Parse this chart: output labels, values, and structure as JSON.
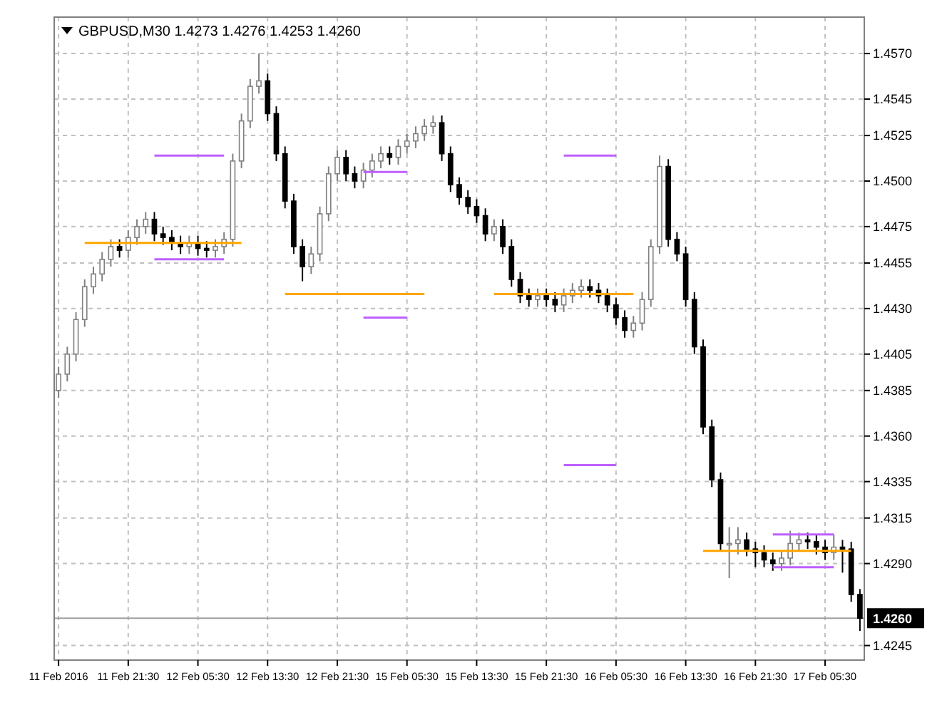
{
  "chart_data": {
    "type": "candlestick",
    "title": "GBPUSD,M30  1.4273 1.4276 1.4253 1.4260",
    "categories": [
      "11 Feb 2016",
      null,
      null,
      null,
      null,
      null,
      null,
      null,
      "11 Feb 21:30",
      null,
      null,
      null,
      null,
      null,
      null,
      null,
      "12 Feb 05:30",
      null,
      null,
      null,
      null,
      null,
      null,
      null,
      "12 Feb 13:30",
      null,
      null,
      null,
      null,
      null,
      null,
      null,
      "12 Feb 21:30",
      null,
      null,
      null,
      null,
      null,
      null,
      null,
      "15 Feb 05:30",
      null,
      null,
      null,
      null,
      null,
      null,
      null,
      "15 Feb 13:30",
      null,
      null,
      null,
      null,
      null,
      null,
      null,
      "15 Feb 21:30",
      null,
      null,
      null,
      null,
      null,
      null,
      null,
      "16 Feb 05:30",
      null,
      null,
      null,
      null,
      null,
      null,
      null,
      "16 Feb 13:30",
      null,
      null,
      null,
      null,
      null,
      null,
      null,
      "16 Feb 21:30",
      null,
      null,
      null,
      null,
      null,
      null,
      null,
      "17 Feb 05:30",
      null,
      null,
      null,
      null
    ],
    "ohlc": [
      [
        1.4385,
        1.4398,
        1.4381,
        1.4394
      ],
      [
        1.4394,
        1.4409,
        1.439,
        1.4405
      ],
      [
        1.4405,
        1.4428,
        1.4401,
        1.4424
      ],
      [
        1.4424,
        1.4446,
        1.442,
        1.4442
      ],
      [
        1.4442,
        1.4453,
        1.4438,
        1.4449
      ],
      [
        1.4449,
        1.4461,
        1.4445,
        1.4457
      ],
      [
        1.4457,
        1.4468,
        1.4453,
        1.4464
      ],
      [
        1.4464,
        1.4468,
        1.4458,
        1.4462
      ],
      [
        1.4462,
        1.4473,
        1.4458,
        1.4469
      ],
      [
        1.4469,
        1.4479,
        1.4465,
        1.4475
      ],
      [
        1.4475,
        1.4483,
        1.4471,
        1.4479
      ],
      [
        1.4479,
        1.4483,
        1.4467,
        1.4471
      ],
      [
        1.4471,
        1.4475,
        1.4465,
        1.4469
      ],
      [
        1.4469,
        1.4473,
        1.4462,
        1.4466
      ],
      [
        1.4466,
        1.447,
        1.446,
        1.4464
      ],
      [
        1.4464,
        1.447,
        1.446,
        1.4466
      ],
      [
        1.4466,
        1.447,
        1.4459,
        1.4463
      ],
      [
        1.4463,
        1.4467,
        1.4458,
        1.4462
      ],
      [
        1.4462,
        1.4468,
        1.4458,
        1.4464
      ],
      [
        1.4464,
        1.4472,
        1.446,
        1.4468
      ],
      [
        1.4468,
        1.4515,
        1.4464,
        1.4511
      ],
      [
        1.4511,
        1.4537,
        1.4507,
        1.4533
      ],
      [
        1.4533,
        1.4556,
        1.4529,
        1.4552
      ],
      [
        1.4552,
        1.457,
        1.4548,
        1.4555
      ],
      [
        1.4555,
        1.4559,
        1.4533,
        1.4537
      ],
      [
        1.4537,
        1.4541,
        1.4511,
        1.4515
      ],
      [
        1.4515,
        1.4519,
        1.4485,
        1.4489
      ],
      [
        1.4489,
        1.4493,
        1.446,
        1.4464
      ],
      [
        1.4464,
        1.4468,
        1.4445,
        1.4453
      ],
      [
        1.4453,
        1.4464,
        1.4449,
        1.446
      ],
      [
        1.446,
        1.4486,
        1.4456,
        1.4482
      ],
      [
        1.4482,
        1.4508,
        1.4478,
        1.4504
      ],
      [
        1.4504,
        1.4517,
        1.45,
        1.4513
      ],
      [
        1.4513,
        1.4517,
        1.45,
        1.4504
      ],
      [
        1.4504,
        1.4508,
        1.4496,
        1.45
      ],
      [
        1.45,
        1.451,
        1.4496,
        1.4506
      ],
      [
        1.4506,
        1.4515,
        1.4502,
        1.4511
      ],
      [
        1.4511,
        1.4519,
        1.4507,
        1.4515
      ],
      [
        1.4515,
        1.4519,
        1.4509,
        1.4513
      ],
      [
        1.4513,
        1.4523,
        1.4509,
        1.4519
      ],
      [
        1.4519,
        1.4526,
        1.4515,
        1.4522
      ],
      [
        1.4522,
        1.453,
        1.4518,
        1.4526
      ],
      [
        1.4526,
        1.4534,
        1.4522,
        1.453
      ],
      [
        1.453,
        1.4536,
        1.4526,
        1.4532
      ],
      [
        1.4532,
        1.4536,
        1.4511,
        1.4515
      ],
      [
        1.4515,
        1.4519,
        1.4494,
        1.4498
      ],
      [
        1.4498,
        1.4502,
        1.4487,
        1.4491
      ],
      [
        1.4491,
        1.4495,
        1.4482,
        1.4486
      ],
      [
        1.4486,
        1.449,
        1.4477,
        1.4481
      ],
      [
        1.4481,
        1.4485,
        1.4467,
        1.4471
      ],
      [
        1.4471,
        1.4479,
        1.4467,
        1.4475
      ],
      [
        1.4475,
        1.4479,
        1.446,
        1.4464
      ],
      [
        1.4464,
        1.4468,
        1.4442,
        1.4446
      ],
      [
        1.4446,
        1.445,
        1.4433,
        1.4437
      ],
      [
        1.4437,
        1.4441,
        1.4431,
        1.4435
      ],
      [
        1.4435,
        1.4441,
        1.4431,
        1.4437
      ],
      [
        1.4437,
        1.4441,
        1.4431,
        1.4435
      ],
      [
        1.4435,
        1.4439,
        1.4428,
        1.4432
      ],
      [
        1.4432,
        1.4441,
        1.4428,
        1.4437
      ],
      [
        1.4437,
        1.4444,
        1.4433,
        1.444
      ],
      [
        1.444,
        1.4446,
        1.4436,
        1.4442
      ],
      [
        1.4442,
        1.4446,
        1.4436,
        1.444
      ],
      [
        1.444,
        1.4444,
        1.4433,
        1.4437
      ],
      [
        1.4437,
        1.4441,
        1.4428,
        1.4432
      ],
      [
        1.4432,
        1.4436,
        1.4421,
        1.4425
      ],
      [
        1.4425,
        1.4429,
        1.4414,
        1.4418
      ],
      [
        1.4418,
        1.4426,
        1.4414,
        1.4422
      ],
      [
        1.4422,
        1.4439,
        1.4418,
        1.4435
      ],
      [
        1.4435,
        1.4468,
        1.4431,
        1.4464
      ],
      [
        1.4464,
        1.4514,
        1.446,
        1.4508
      ],
      [
        1.4508,
        1.4512,
        1.4464,
        1.4468
      ],
      [
        1.4468,
        1.4472,
        1.4456,
        1.446
      ],
      [
        1.446,
        1.4464,
        1.4431,
        1.4435
      ],
      [
        1.4435,
        1.4439,
        1.4405,
        1.4409
      ],
      [
        1.4409,
        1.4413,
        1.4361,
        1.4365
      ],
      [
        1.4365,
        1.4369,
        1.4332,
        1.4336
      ],
      [
        1.4336,
        1.434,
        1.4297,
        1.4301
      ],
      [
        1.4301,
        1.431,
        1.4282,
        1.4301
      ],
      [
        1.4301,
        1.431,
        1.4295,
        1.4303
      ],
      [
        1.4303,
        1.4307,
        1.4294,
        1.4298
      ],
      [
        1.4298,
        1.4302,
        1.4288,
        1.4296
      ],
      [
        1.4296,
        1.43,
        1.4288,
        1.4292
      ],
      [
        1.4292,
        1.4296,
        1.4286,
        1.429
      ],
      [
        1.429,
        1.4297,
        1.4286,
        1.4293
      ],
      [
        1.4293,
        1.4308,
        1.4289,
        1.4301
      ],
      [
        1.4301,
        1.4307,
        1.4297,
        1.4303
      ],
      [
        1.4303,
        1.4307,
        1.4298,
        1.4302
      ],
      [
        1.4302,
        1.4306,
        1.4295,
        1.4299
      ],
      [
        1.4299,
        1.4303,
        1.4292,
        1.4296
      ],
      [
        1.4296,
        1.4306,
        1.4292,
        1.4299
      ],
      [
        1.4299,
        1.4303,
        1.4285,
        1.4298
      ],
      [
        1.4298,
        1.4302,
        1.4269,
        1.4273
      ],
      [
        1.4273,
        1.4276,
        1.4253,
        1.426
      ]
    ],
    "series": [
      {
        "type": "line",
        "color": "#ffa500",
        "values": [
          null,
          null,
          null,
          1.4466,
          1.4466,
          1.4466,
          1.4466,
          1.4466,
          1.4466,
          1.4466,
          1.4466,
          1.4466,
          1.4466,
          1.4466,
          1.4466,
          1.4466,
          1.4466,
          1.4466,
          1.4466,
          1.4466,
          1.4466,
          1.4466,
          null,
          null,
          null,
          null,
          1.4438,
          1.4438,
          1.4438,
          1.4438,
          1.4438,
          1.4438,
          1.4438,
          1.4438,
          1.4438,
          1.4438,
          1.4438,
          1.4438,
          1.4438,
          1.4438,
          1.4438,
          1.4438,
          1.4438,
          null,
          null,
          null,
          null,
          null,
          null,
          null,
          1.4438,
          1.4438,
          1.4438,
          1.4438,
          1.4438,
          1.4438,
          1.4438,
          1.4438,
          1.4438,
          1.4438,
          1.4438,
          1.4438,
          1.4438,
          1.4438,
          1.4438,
          1.4438,
          1.4438,
          null,
          null,
          null,
          null,
          null,
          null,
          null,
          1.4297,
          1.4297,
          1.4297,
          1.4297,
          1.4297,
          1.4297,
          1.4297,
          1.4297,
          1.4297,
          1.4297,
          1.4297,
          1.4297,
          1.4297,
          1.4297,
          1.4297,
          1.4297,
          1.4297,
          1.4297,
          null
        ]
      },
      {
        "type": "line",
        "color": "#bf5fff",
        "values": [
          null,
          null,
          null,
          null,
          null,
          null,
          null,
          null,
          null,
          null,
          null,
          1.4514,
          1.4514,
          1.4514,
          1.4514,
          1.4514,
          1.4514,
          1.4514,
          1.4514,
          1.4514,
          null,
          null,
          null,
          null,
          null,
          null,
          null,
          null,
          null,
          null,
          null,
          null,
          null,
          null,
          null,
          1.4505,
          1.4505,
          1.4505,
          1.4505,
          1.4505,
          1.4505,
          null,
          null,
          null,
          null,
          null,
          null,
          null,
          null,
          null,
          null,
          null,
          null,
          null,
          null,
          null,
          null,
          null,
          1.4514,
          1.4514,
          1.4514,
          1.4514,
          1.4514,
          1.4514,
          1.4514,
          null,
          null,
          null,
          null,
          null,
          null,
          null,
          null,
          null,
          null,
          null,
          null,
          null,
          null,
          null,
          null,
          null,
          1.4306,
          1.4306,
          1.4306,
          1.4306,
          1.4306,
          1.4306,
          1.4306,
          1.4306,
          null,
          null,
          null
        ]
      },
      {
        "type": "line",
        "color": "#bf5fff",
        "values": [
          null,
          null,
          null,
          null,
          null,
          null,
          null,
          null,
          null,
          null,
          null,
          1.4457,
          1.4457,
          1.4457,
          1.4457,
          1.4457,
          1.4457,
          1.4457,
          1.4457,
          1.4457,
          null,
          null,
          null,
          null,
          null,
          null,
          null,
          null,
          null,
          null,
          null,
          null,
          null,
          null,
          null,
          1.4425,
          1.4425,
          1.4425,
          1.4425,
          1.4425,
          1.4425,
          null,
          null,
          null,
          null,
          null,
          null,
          null,
          null,
          null,
          null,
          null,
          null,
          null,
          null,
          null,
          null,
          null,
          1.4344,
          1.4344,
          1.4344,
          1.4344,
          1.4344,
          1.4344,
          1.4344,
          null,
          null,
          null,
          null,
          null,
          null,
          null,
          null,
          null,
          null,
          null,
          null,
          null,
          null,
          null,
          null,
          null,
          1.4288,
          1.4288,
          1.4288,
          1.4288,
          1.4288,
          1.4288,
          1.4288,
          1.4288,
          null,
          null,
          null
        ]
      }
    ],
    "ylim": [
      1.4237,
      1.459
    ],
    "yticks": [
      {
        "value": 1.457,
        "label": "1.4570"
      },
      1.4545,
      1.4525,
      {
        "value": 1.45,
        "label": "1.4500"
      },
      1.4475,
      1.4455,
      {
        "value": 1.443,
        "label": "1.4430"
      },
      1.4405,
      1.4385,
      {
        "value": 1.436,
        "label": "1.4360"
      },
      1.4335,
      1.4315,
      {
        "value": 1.429,
        "label": "1.4290"
      },
      1.4245
    ],
    "grid": true,
    "ref_lines": [
      {
        "axis": "y",
        "value": 1.426,
        "label": "1.4260",
        "color": "#a0a0a0"
      }
    ]
  }
}
